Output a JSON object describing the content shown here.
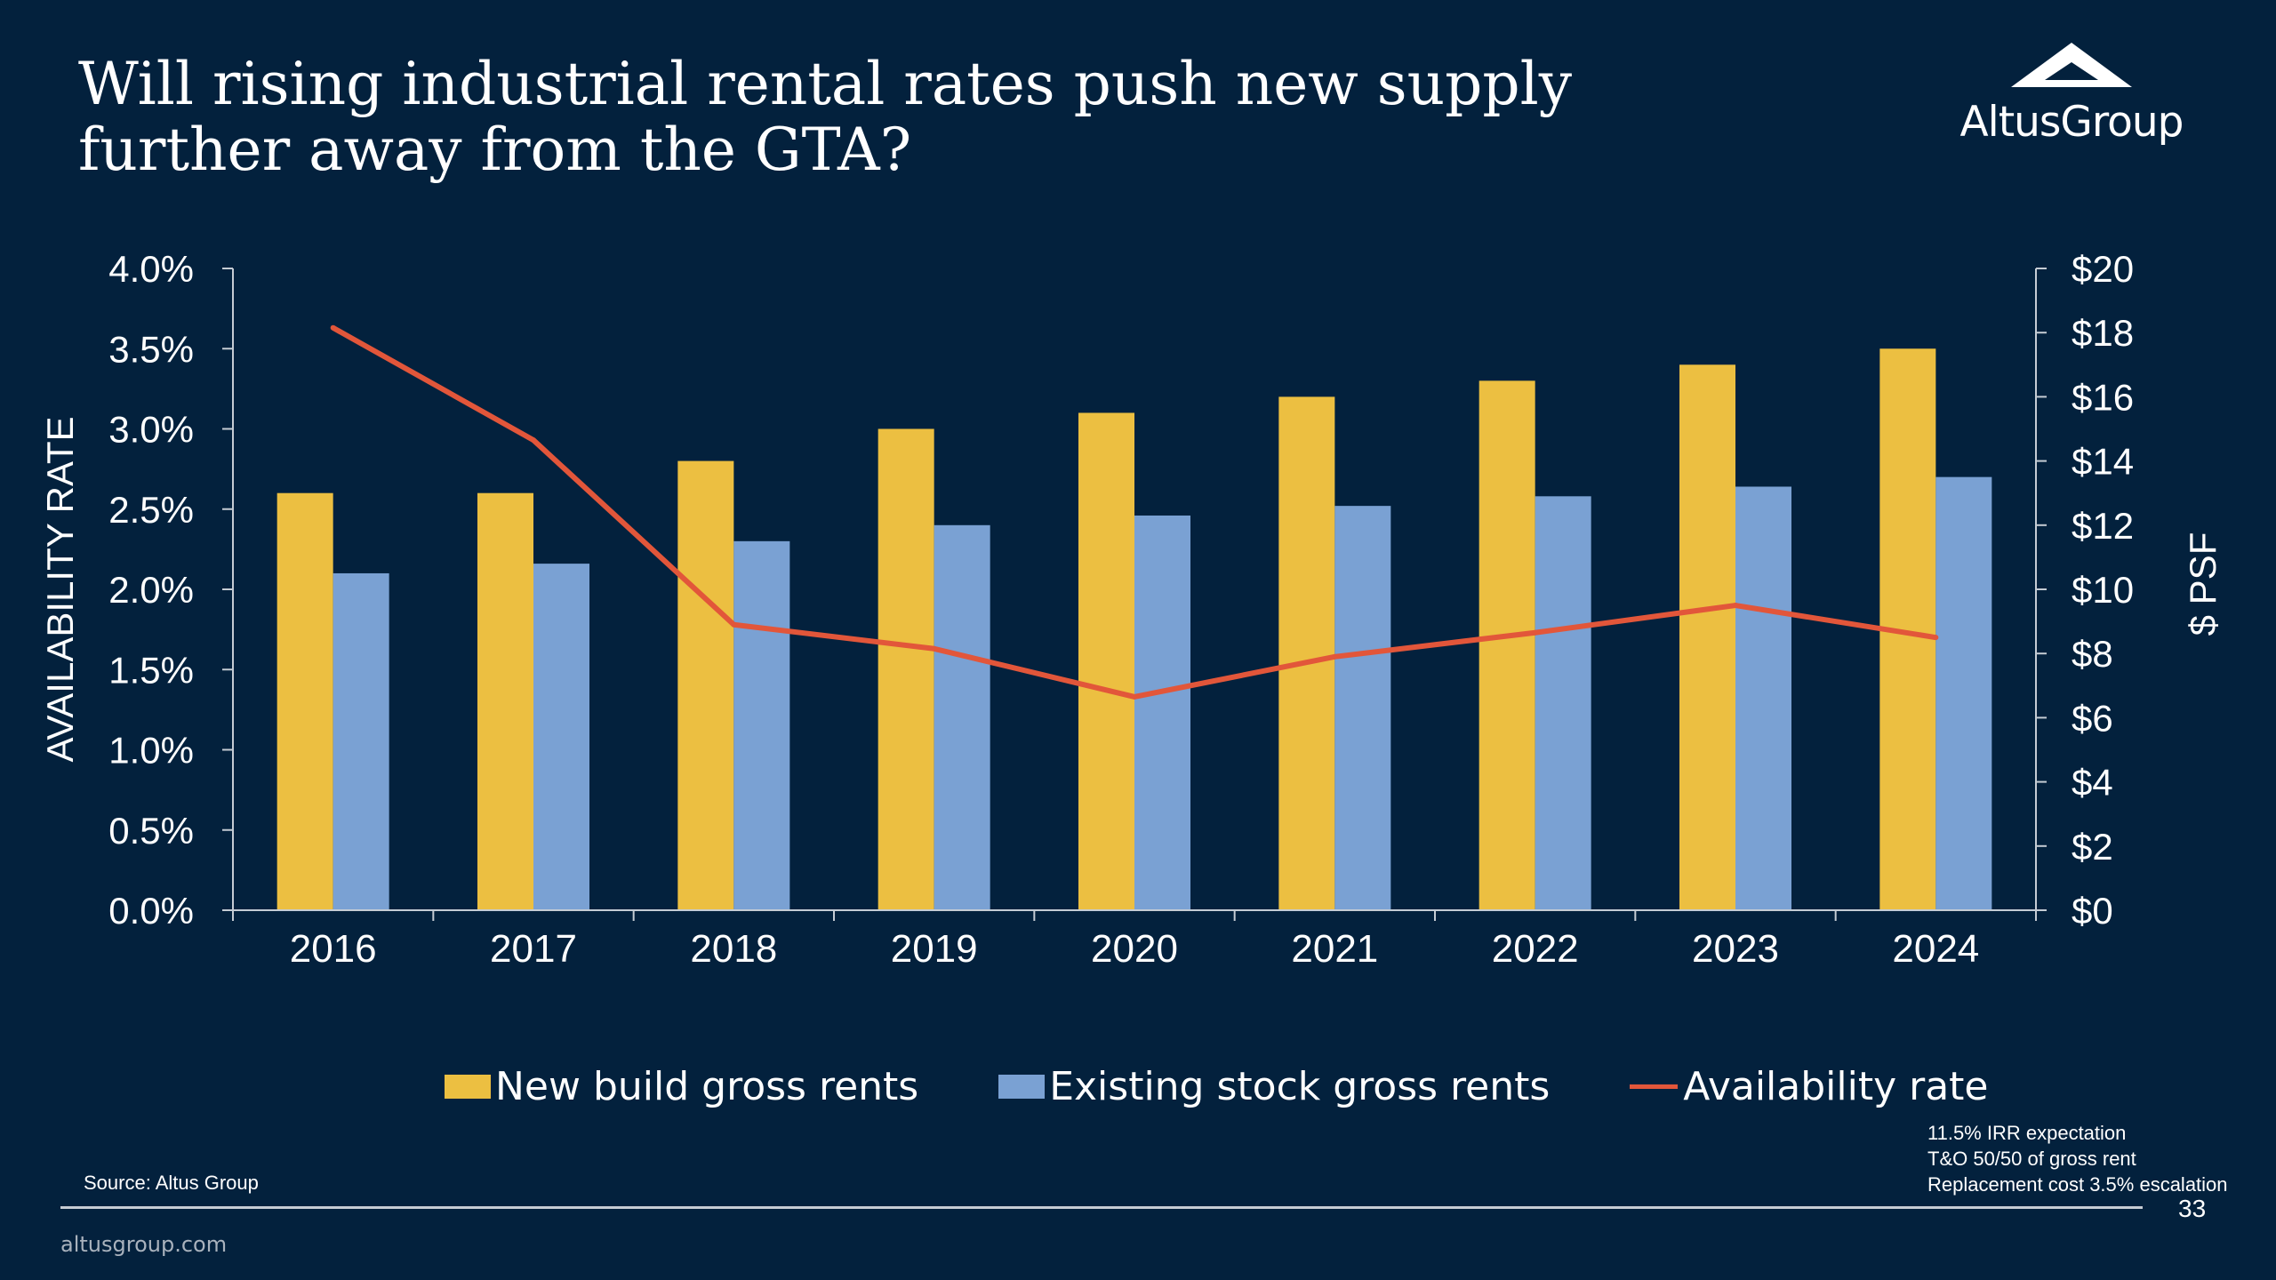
{
  "slide": {
    "title": "Will rising industrial rental rates push new supply further away from the GTA?",
    "logo_text": "AltusGroup",
    "source": "Source:  Altus Group",
    "notes": [
      "11.5% IRR expectation",
      "T&O 50/50 of gross rent",
      "Replacement cost 3.5% escalation"
    ],
    "page_number": "33",
    "website": "altusgroup.com"
  },
  "colors": {
    "background": "#03213d",
    "new_build": "#ecbf41",
    "existing": "#7aa1d3",
    "availability": "#e2563a",
    "axis": "#c5ccd4"
  },
  "chart_data": {
    "type": "bar",
    "categories": [
      "2016",
      "2017",
      "2018",
      "2019",
      "2020",
      "2021",
      "2022",
      "2023",
      "2024"
    ],
    "series": [
      {
        "name": "New build gross rents",
        "type": "bar",
        "axis": "right",
        "values": [
          13.0,
          13.0,
          14.0,
          15.0,
          15.5,
          16.0,
          16.5,
          17.0,
          17.5
        ]
      },
      {
        "name": "Existing stock gross rents",
        "type": "bar",
        "axis": "right",
        "values": [
          10.5,
          10.8,
          11.5,
          12.0,
          12.3,
          12.6,
          12.9,
          13.2,
          13.5
        ]
      },
      {
        "name": "Availability rate",
        "type": "line",
        "axis": "left",
        "values": [
          3.63,
          2.93,
          1.78,
          1.63,
          1.33,
          1.58,
          1.73,
          1.9,
          1.7
        ]
      }
    ],
    "ylabel": "AVAILABILITY RATE",
    "ylabel_right": "$ PSF",
    "ylim": [
      0,
      4
    ],
    "ylim_right": [
      0,
      20
    ],
    "yticks": [
      "0.0%",
      "0.5%",
      "1.0%",
      "1.5%",
      "2.0%",
      "2.5%",
      "3.0%",
      "3.5%",
      "4.0%"
    ],
    "yticks_right": [
      "$0",
      "$2",
      "$4",
      "$6",
      "$8",
      "$10",
      "$12",
      "$14",
      "$16",
      "$18",
      "$20"
    ],
    "legend_position": "bottom",
    "grid": false
  }
}
